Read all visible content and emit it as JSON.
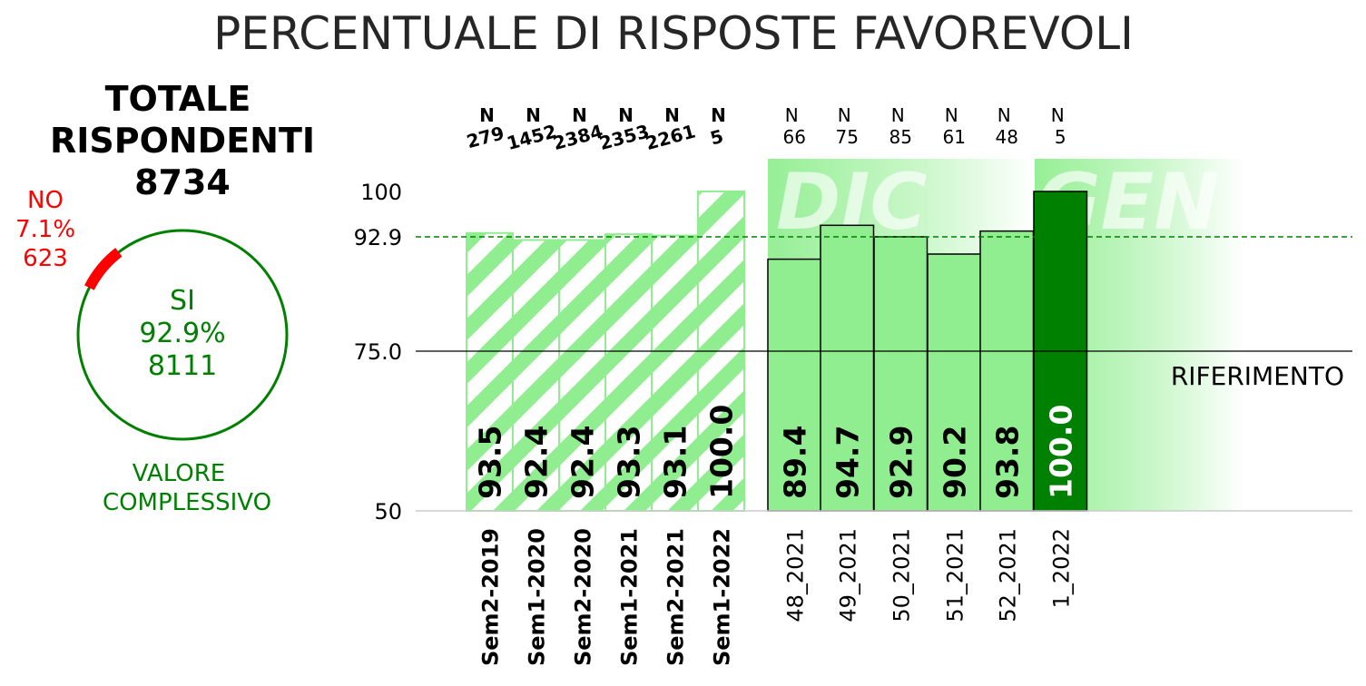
{
  "title": "PERCENTUALE DI RISPOSTE FAVOREVOLI",
  "colors": {
    "favorable": "#008000",
    "unfavorable": "#ff0000",
    "bar_light": "#90ee90",
    "bar_highlight": "#008000",
    "reference_line": "#000000",
    "average_line": "#008000",
    "text": "#000000",
    "title": "#262626"
  },
  "summary": {
    "heading_line1": "TOTALE",
    "heading_line2": "RISPONDENTI",
    "total": "8734",
    "yes_label": "SI",
    "yes_pct": "92.9%",
    "yes_count": "8111",
    "no_label": "NO",
    "no_pct": "7.1%",
    "no_count": "623",
    "caption_line1": "VALORE",
    "caption_line2": "COMPLESSIVO"
  },
  "chart_data": [
    {
      "type": "pie",
      "style": "ring",
      "categories": [
        "SI",
        "NO"
      ],
      "values": [
        92.9,
        7.1
      ],
      "counts": [
        8111,
        623
      ],
      "colors": [
        "#008000",
        "#ff0000"
      ]
    },
    {
      "type": "bar",
      "ylim": [
        50,
        100
      ],
      "yticks": [
        50,
        75.0,
        92.9,
        100
      ],
      "ytick_labels": [
        "50",
        "75.0",
        "92.9",
        "100"
      ],
      "reference": {
        "value": 75.0,
        "label": "RIFERIMENTO"
      },
      "average": {
        "value": 92.9
      },
      "n_label": "N",
      "groups": [
        {
          "name": "semesters",
          "style": "hatched",
          "categories": [
            "Sem2-2019",
            "Sem1-2020",
            "Sem2-2020",
            "Sem1-2021",
            "Sem2-2021",
            "Sem1-2022"
          ],
          "values": [
            93.5,
            92.4,
            92.4,
            93.3,
            93.1,
            100.0
          ],
          "value_labels": [
            "93.5",
            "92.4",
            "92.4",
            "93.3",
            "93.1",
            "100.0"
          ],
          "n": [
            "279",
            "1452",
            "2384",
            "2353",
            "2261",
            "5"
          ]
        },
        {
          "name": "weeks",
          "style": "solid",
          "categories": [
            "48_2021",
            "49_2021",
            "50_2021",
            "51_2021",
            "52_2021",
            "1_2022"
          ],
          "values": [
            89.4,
            94.7,
            92.9,
            90.2,
            93.8,
            100.0
          ],
          "value_labels": [
            "89.4",
            "94.7",
            "92.9",
            "90.2",
            "93.8",
            "100.0"
          ],
          "n": [
            "66",
            "75",
            "85",
            "61",
            "48",
            "5"
          ],
          "highlight_index": 5
        }
      ],
      "month_labels": [
        "DIC",
        "GEN"
      ]
    }
  ]
}
